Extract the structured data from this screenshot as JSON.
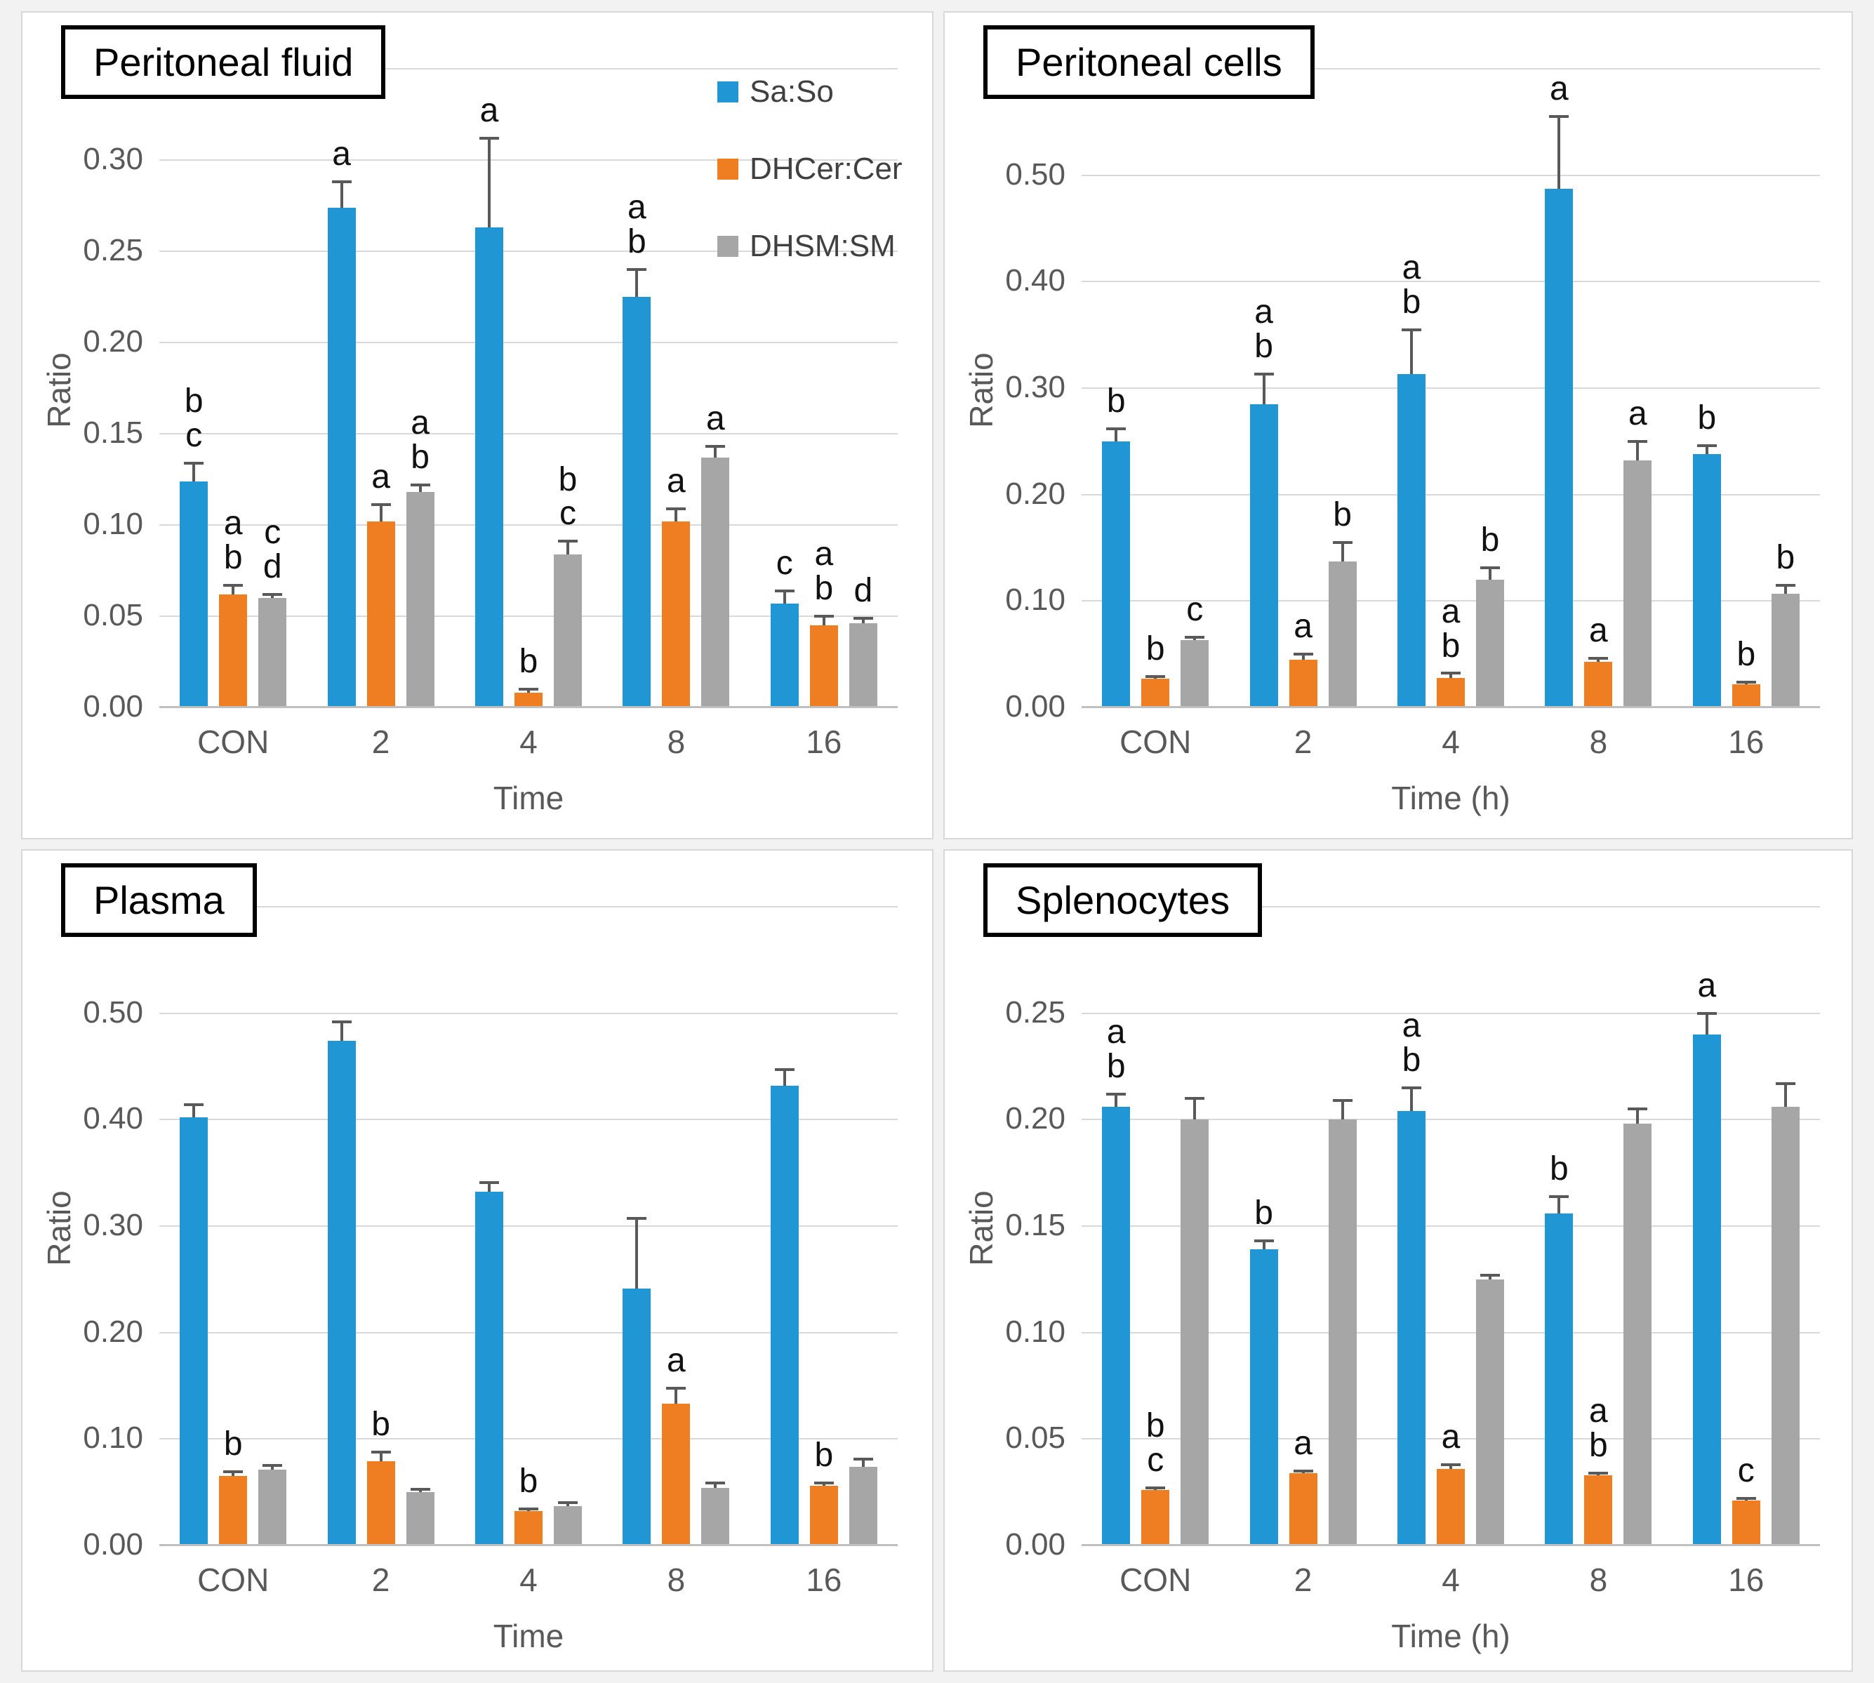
{
  "figure": {
    "description": "Four-panel grouped bar chart of sphingolipid ratios over time",
    "series_colors": {
      "Sa:So": "#2196D5",
      "DHCer:Cer": "#EF7D22",
      "DHSM:SM": "#A6A6A6"
    },
    "error_bar_color": "#595959"
  },
  "legend": {
    "items": [
      {
        "label": "Sa:So",
        "color": "#2196D5"
      },
      {
        "label": "DHCer:Cer",
        "color": "#EF7D22"
      },
      {
        "label": "DHSM:SM",
        "color": "#A6A6A6"
      }
    ]
  },
  "chart_data": [
    {
      "type": "bar",
      "panel": "top-left",
      "title": "Peritoneal fluid",
      "xlabel": "Time",
      "ylabel": "Ratio",
      "categories": [
        "CON",
        "2",
        "4",
        "8",
        "16"
      ],
      "axis": {
        "max": 0.35,
        "tick_step": 0.05,
        "tick_labels": [
          "0.00",
          "0.05",
          "0.10",
          "0.15",
          "0.20",
          "0.25",
          "0.30"
        ],
        "grid": true
      },
      "series": [
        {
          "name": "Sa:So",
          "color": "#2196D5",
          "values": [
            0.124,
            0.274,
            0.263,
            0.225,
            0.057
          ],
          "errors": [
            0.01,
            0.014,
            0.049,
            0.015,
            0.007
          ],
          "letters": [
            [
              "b",
              "c"
            ],
            [
              "a"
            ],
            [
              "a"
            ],
            [
              "a",
              "b"
            ],
            [
              "c"
            ]
          ]
        },
        {
          "name": "DHCer:Cer",
          "color": "#EF7D22",
          "values": [
            0.062,
            0.102,
            0.008,
            0.102,
            0.045
          ],
          "errors": [
            0.005,
            0.009,
            0.002,
            0.007,
            0.005
          ],
          "letters": [
            [
              "a",
              "b"
            ],
            [
              "a"
            ],
            [
              "b"
            ],
            [
              "a"
            ],
            [
              "a",
              "b"
            ]
          ]
        },
        {
          "name": "DHSM:SM",
          "color": "#A6A6A6",
          "values": [
            0.06,
            0.118,
            0.084,
            0.137,
            0.046
          ],
          "errors": [
            0.002,
            0.004,
            0.007,
            0.006,
            0.003
          ],
          "letters": [
            [
              "c",
              "d"
            ],
            [
              "a",
              "b"
            ],
            [
              "b",
              "c"
            ],
            [
              "a"
            ],
            [
              "d"
            ]
          ]
        }
      ],
      "show_legend": true
    },
    {
      "type": "bar",
      "panel": "top-right",
      "title": "Peritoneal cells",
      "xlabel": "Time (h)",
      "ylabel": "Ratio",
      "categories": [
        "CON",
        "2",
        "4",
        "8",
        "16"
      ],
      "axis": {
        "max": 0.6,
        "tick_step": 0.1,
        "tick_labels": [
          "0.00",
          "0.10",
          "0.20",
          "0.30",
          "0.40",
          "0.50"
        ],
        "grid": true
      },
      "series": [
        {
          "name": "Sa:So",
          "color": "#2196D5",
          "values": [
            0.25,
            0.285,
            0.313,
            0.487,
            0.238
          ],
          "errors": [
            0.012,
            0.028,
            0.042,
            0.068,
            0.008
          ],
          "letters": [
            [
              "b"
            ],
            [
              "a",
              "b"
            ],
            [
              "a",
              "b"
            ],
            [
              "a"
            ],
            [
              "b"
            ]
          ]
        },
        {
          "name": "DHCer:Cer",
          "color": "#EF7D22",
          "values": [
            0.027,
            0.045,
            0.028,
            0.043,
            0.022
          ],
          "errors": [
            0.002,
            0.005,
            0.004,
            0.003,
            0.002
          ],
          "letters": [
            [
              "b"
            ],
            [
              "a"
            ],
            [
              "a",
              "b"
            ],
            [
              "a"
            ],
            [
              "b"
            ]
          ]
        },
        {
          "name": "DHSM:SM",
          "color": "#A6A6A6",
          "values": [
            0.063,
            0.137,
            0.12,
            0.232,
            0.107
          ],
          "errors": [
            0.003,
            0.018,
            0.011,
            0.018,
            0.008
          ],
          "letters": [
            [
              "c"
            ],
            [
              "b"
            ],
            [
              "b"
            ],
            [
              "a"
            ],
            [
              "b"
            ]
          ]
        }
      ],
      "show_legend": false
    },
    {
      "type": "bar",
      "panel": "bottom-left",
      "title": "Plasma",
      "xlabel": "Time",
      "ylabel": "Ratio",
      "categories": [
        "CON",
        "2",
        "4",
        "8",
        "16"
      ],
      "axis": {
        "max": 0.6,
        "tick_step": 0.1,
        "tick_labels": [
          "0.00",
          "0.10",
          "0.20",
          "0.30",
          "0.40",
          "0.50"
        ],
        "grid": true
      },
      "series": [
        {
          "name": "Sa:So",
          "color": "#2196D5",
          "values": [
            0.402,
            0.474,
            0.332,
            0.241,
            0.432
          ],
          "errors": [
            0.012,
            0.018,
            0.009,
            0.066,
            0.015
          ],
          "letters": [
            [],
            [],
            [],
            [],
            []
          ]
        },
        {
          "name": "DHCer:Cer",
          "color": "#EF7D22",
          "values": [
            0.065,
            0.079,
            0.032,
            0.133,
            0.056
          ],
          "errors": [
            0.004,
            0.009,
            0.002,
            0.015,
            0.003
          ],
          "letters": [
            [
              "b"
            ],
            [
              "b"
            ],
            [
              "b"
            ],
            [
              "a"
            ],
            [
              "b"
            ]
          ]
        },
        {
          "name": "DHSM:SM",
          "color": "#A6A6A6",
          "values": [
            0.071,
            0.05,
            0.037,
            0.054,
            0.074
          ],
          "errors": [
            0.004,
            0.003,
            0.003,
            0.005,
            0.007
          ],
          "letters": [
            [],
            [],
            [],
            [],
            []
          ]
        }
      ],
      "show_legend": false
    },
    {
      "type": "bar",
      "panel": "bottom-right",
      "title": "Splenocytes",
      "xlabel": "Time (h)",
      "ylabel": "Ratio",
      "categories": [
        "CON",
        "2",
        "4",
        "8",
        "16"
      ],
      "axis": {
        "max": 0.3,
        "tick_step": 0.05,
        "tick_labels": [
          "0.00",
          "0.05",
          "0.10",
          "0.15",
          "0.20",
          "0.25"
        ],
        "grid": true
      },
      "series": [
        {
          "name": "Sa:So",
          "color": "#2196D5",
          "values": [
            0.206,
            0.139,
            0.204,
            0.156,
            0.24
          ],
          "errors": [
            0.006,
            0.004,
            0.011,
            0.008,
            0.01
          ],
          "letters": [
            [
              "a",
              "b"
            ],
            [
              "b"
            ],
            [
              "a",
              "b"
            ],
            [
              "b"
            ],
            [
              "a"
            ]
          ]
        },
        {
          "name": "DHCer:Cer",
          "color": "#EF7D22",
          "values": [
            0.026,
            0.034,
            0.036,
            0.033,
            0.021
          ],
          "errors": [
            0.001,
            0.001,
            0.002,
            0.001,
            0.001
          ],
          "letters": [
            [
              "b",
              "c"
            ],
            [
              "a"
            ],
            [
              "a"
            ],
            [
              "a",
              "b"
            ],
            [
              "c"
            ]
          ]
        },
        {
          "name": "DHSM:SM",
          "color": "#A6A6A6",
          "values": [
            0.2,
            0.2,
            0.125,
            0.198,
            0.206
          ],
          "errors": [
            0.01,
            0.009,
            0.002,
            0.007,
            0.011
          ],
          "letters": [
            [],
            [],
            [],
            [],
            []
          ]
        }
      ],
      "show_legend": false
    }
  ]
}
